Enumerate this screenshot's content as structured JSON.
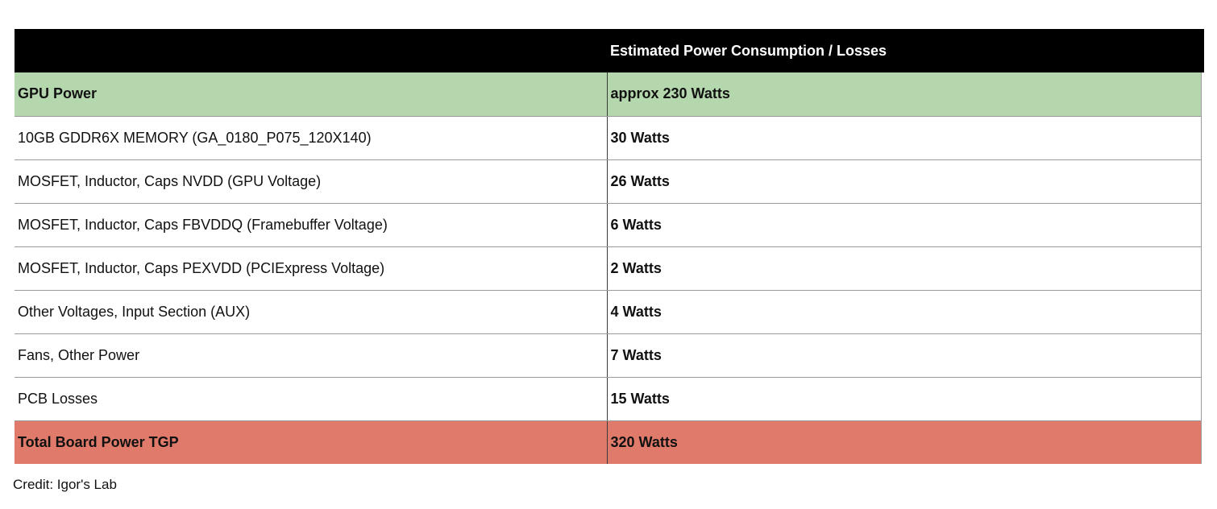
{
  "table": {
    "header": {
      "label": "",
      "value": "Estimated Power Consumption / Losses"
    },
    "rows": [
      {
        "label": "GPU Power",
        "value": "approx 230 Watts"
      },
      {
        "label": "10GB GDDR6X MEMORY (GA_0180_P075_120X140)",
        "value": "30 Watts"
      },
      {
        "label": "MOSFET, Inductor, Caps NVDD (GPU Voltage)",
        "value": "26 Watts"
      },
      {
        "label": "MOSFET, Inductor, Caps FBVDDQ (Framebuffer Voltage)",
        "value": "6 Watts"
      },
      {
        "label": "MOSFET, Inductor, Caps PEXVDD (PCIExpress Voltage)",
        "value": "2 Watts"
      },
      {
        "label": "Other Voltages, Input Section (AUX)",
        "value": "4 Watts"
      },
      {
        "label": "Fans, Other Power",
        "value": "7 Watts"
      },
      {
        "label": "PCB Losses",
        "value": "15 Watts"
      },
      {
        "label": "Total Board Power TGP",
        "value": "320 Watts"
      }
    ]
  },
  "credit": "Credit: Igor's Lab",
  "colors": {
    "header_bg": "#000000",
    "highlight_row_bg": "#b5d7ae",
    "total_row_bg": "#e07b6b"
  }
}
